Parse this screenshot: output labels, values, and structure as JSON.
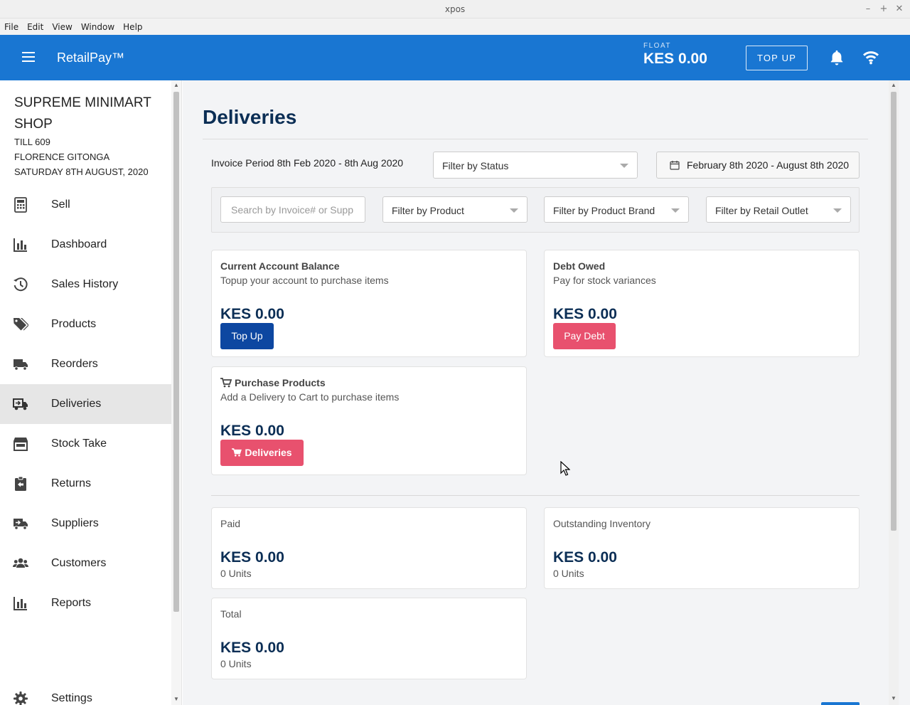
{
  "window": {
    "title": "xpos",
    "controls": {
      "minimize": "–",
      "maximize": "+",
      "close": "✕"
    }
  },
  "menu": [
    "File",
    "Edit",
    "View",
    "Window",
    "Help"
  ],
  "header": {
    "brand": "RetailPay™",
    "float_label": "FLOAT",
    "float_value": "KES 0.00",
    "topup_label": "TOP UP",
    "color": "#1976d2",
    "icons": [
      "menu-icon",
      "bell-icon",
      "wifi-icon"
    ]
  },
  "sidebar": {
    "shop_name": "SUPREME MINIMART SHOP",
    "till": "TILL 609",
    "user": "FLORENCE GITONGA",
    "date": "SATURDAY 8TH AUGUST, 2020",
    "items": [
      {
        "label": "Sell",
        "icon": "calculator-icon"
      },
      {
        "label": "Dashboard",
        "icon": "bar-chart-icon"
      },
      {
        "label": "Sales History",
        "icon": "history-icon"
      },
      {
        "label": "Products",
        "icon": "tags-icon"
      },
      {
        "label": "Reorders",
        "icon": "truck-icon"
      },
      {
        "label": "Deliveries",
        "icon": "delivery-truck-icon",
        "active": true
      },
      {
        "label": "Stock Take",
        "icon": "store-icon"
      },
      {
        "label": "Returns",
        "icon": "return-clipboard-icon"
      },
      {
        "label": "Suppliers",
        "icon": "shipping-icon"
      },
      {
        "label": "Customers",
        "icon": "users-icon"
      },
      {
        "label": "Reports",
        "icon": "bar-chart-icon"
      },
      {
        "label": "Settings",
        "icon": "gear-icon"
      }
    ]
  },
  "main": {
    "title": "Deliveries",
    "invoice_period": "Invoice Period 8th Feb 2020 - 8th Aug 2020",
    "status_filter": "Filter by Status",
    "date_range": "February 8th 2020 - August 8th 2020",
    "search_placeholder": "Search by Invoice# or Supp",
    "filters": [
      "Filter by Product",
      "Filter by Product Brand",
      "Filter by Retail Outlet"
    ],
    "cards": {
      "balance": {
        "title": "Current Account Balance",
        "subtitle": "Topup your account to purchase items",
        "amount": "KES 0.00",
        "button": "Top Up"
      },
      "debt": {
        "title": "Debt Owed",
        "subtitle": "Pay for stock variances",
        "amount": "KES 0.00",
        "button": "Pay Debt"
      },
      "purchase": {
        "title": "Purchase Products",
        "subtitle": "Add a Delivery to Cart to purchase items",
        "amount": "KES 0.00",
        "button": "Deliveries"
      }
    },
    "stats": {
      "paid": {
        "title": "Paid",
        "amount": "KES 0.00",
        "units": "0 Units"
      },
      "outstanding": {
        "title": "Outstanding Inventory",
        "amount": "KES 0.00",
        "units": "0 Units"
      },
      "total": {
        "title": "Total",
        "amount": "KES 0.00",
        "units": "0 Units"
      }
    }
  },
  "colors": {
    "accent": "#1976d2",
    "primary_button": "#0d47a1",
    "danger_button": "#e8516e",
    "title_text": "#0b2e55"
  }
}
